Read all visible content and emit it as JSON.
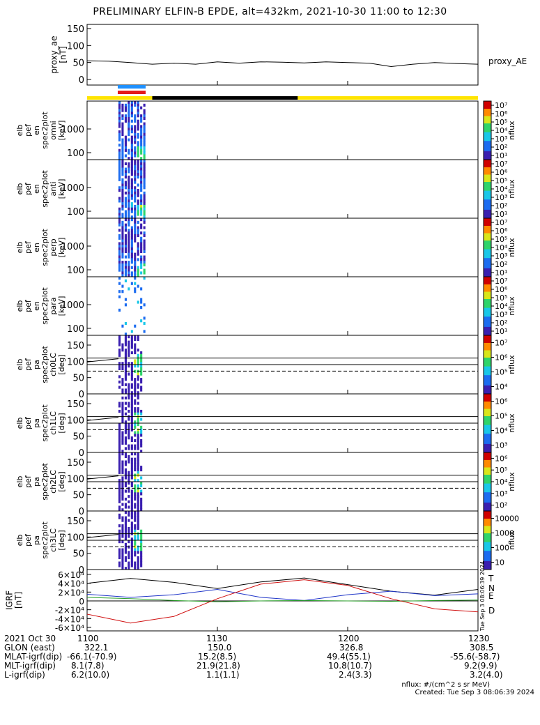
{
  "title": "PRELIMINARY ELFIN-B EPDE, alt=432km, 2021-10-30 11:00 to 12:30",
  "colors": {
    "ae_line": "#000000",
    "sci_blue": "#1e90ff",
    "sci_red": "#e41a1c",
    "bar_yellow": "#ffe400",
    "bar_black": "#000000",
    "bx": "#000000",
    "by": "#1f35c8",
    "bz": "#2aa12a",
    "bd": "#d01010"
  },
  "chart_data": [
    {
      "type": "line",
      "panel": "proxy_ae",
      "ylabel": "proxy_ae\n[nT]",
      "ylim": [
        0,
        150
      ],
      "yticks": [
        "0",
        "50",
        "100",
        "150"
      ],
      "legend": "proxy_AE",
      "x_minutes": [
        0,
        5,
        10,
        15,
        20,
        25,
        30,
        35,
        40,
        45,
        50,
        55,
        60,
        65,
        70,
        75,
        80,
        85,
        90
      ],
      "values": [
        55,
        54,
        50,
        45,
        48,
        45,
        52,
        48,
        52,
        51,
        49,
        52,
        50,
        48,
        38,
        45,
        50,
        47,
        45
      ]
    },
    {
      "type": "heatmap",
      "panel": "en-omni",
      "ylabel": "elb\npef\nen\nspec2plot\nomni\n[keV]",
      "yticks": [
        "100",
        "1000"
      ],
      "cbar_ticks": [
        "10¹",
        "10²",
        "10³",
        "10⁴",
        "10⁵",
        "10⁶",
        "10⁷"
      ],
      "cbar_label": "nflux"
    },
    {
      "type": "heatmap",
      "panel": "en-anti",
      "ylabel": "elb\npef\nen\nspec2plot\nanti\n[keV]",
      "yticks": [
        "100",
        "1000"
      ],
      "cbar_ticks": [
        "10¹",
        "10²",
        "10³",
        "10⁴",
        "10⁵",
        "10⁶",
        "10⁷"
      ],
      "cbar_label": "nflux"
    },
    {
      "type": "heatmap",
      "panel": "en-perp",
      "ylabel": "elb\npef\nen\nspec2plot\nperp\n[keV]",
      "yticks": [
        "100",
        "1000"
      ],
      "cbar_ticks": [
        "10¹",
        "10²",
        "10³",
        "10⁴",
        "10⁵",
        "10⁶",
        "10⁷"
      ],
      "cbar_label": "nflux"
    },
    {
      "type": "heatmap",
      "panel": "en-para",
      "ylabel": "elb\npef\nen\nspec2plot\npara\n[keV]",
      "yticks": [
        "100",
        "1000"
      ],
      "cbar_ticks": [
        "10¹",
        "10²",
        "10³",
        "10⁴",
        "10⁵",
        "10⁶",
        "10⁷"
      ],
      "cbar_label": "nflux"
    },
    {
      "type": "heatmap",
      "panel": "pa-ch0LC",
      "ylabel": "elb\npef\npa\nspec2plot\nch0LC\n[deg]",
      "ylim": [
        0,
        180
      ],
      "yticks": [
        "0",
        "50",
        "100",
        "150"
      ],
      "cbar_ticks": [
        "10⁴",
        "10⁵",
        "10⁶",
        "10⁷"
      ],
      "cbar_label": "nflux"
    },
    {
      "type": "heatmap",
      "panel": "pa-ch1LC",
      "ylabel": "elb\npef\npa\nspec2plot\nch1LC\n[deg]",
      "ylim": [
        0,
        180
      ],
      "yticks": [
        "0",
        "50",
        "100",
        "150"
      ],
      "cbar_ticks": [
        "10³",
        "10⁴",
        "10⁵",
        "10⁶"
      ],
      "cbar_label": "nflux"
    },
    {
      "type": "heatmap",
      "panel": "pa-ch2LC",
      "ylabel": "elb\npef\npa\nspec2plot\nch2LC\n[deg]",
      "ylim": [
        0,
        180
      ],
      "yticks": [
        "0",
        "50",
        "100",
        "150"
      ],
      "cbar_ticks": [
        "10²",
        "10³",
        "10⁴",
        "10⁵",
        "10⁶"
      ],
      "cbar_label": "nflux"
    },
    {
      "type": "heatmap",
      "panel": "pa-ch3LC",
      "ylabel": "elb\npef\npa\nspec2plot\nch3LC\n[deg]",
      "ylim": [
        0,
        180
      ],
      "yticks": [
        "0",
        "50",
        "100",
        "150"
      ],
      "cbar_ticks": [
        "10",
        "100",
        "1000",
        "10000"
      ],
      "cbar_label": "nflux"
    },
    {
      "type": "line",
      "panel": "igrf",
      "ylabel": "IGRF\n[nT]",
      "ylim": [
        -60000,
        60000
      ],
      "yticks": [
        "-6×10⁴",
        "-4×10⁴",
        "-2×10⁴",
        "0",
        "2×10⁴",
        "4×10⁴",
        "6×10⁴"
      ],
      "x_minutes": [
        0,
        10,
        20,
        30,
        40,
        50,
        60,
        70,
        80,
        90
      ],
      "series": [
        {
          "name": "T",
          "values": [
            40000,
            51000,
            42000,
            28000,
            43000,
            52000,
            37000,
            22000,
            13000,
            26000
          ]
        },
        {
          "name": "N",
          "values": [
            15000,
            8000,
            14000,
            26000,
            8000,
            1000,
            14000,
            22000,
            12000,
            16000
          ]
        },
        {
          "name": "E",
          "values": [
            8000,
            5000,
            1000,
            -2000,
            0,
            1000,
            0,
            -1000,
            1000,
            2000
          ]
        },
        {
          "name": "D",
          "values": [
            -30000,
            -50000,
            -35000,
            5000,
            38000,
            48000,
            35000,
            5000,
            -18000,
            -25000
          ]
        }
      ]
    }
  ],
  "xaxis": {
    "ticks": [
      {
        "minute": 0,
        "label": "1100"
      },
      {
        "minute": 30,
        "label": "1130"
      },
      {
        "minute": 60,
        "label": "1200"
      },
      {
        "minute": 90,
        "label": "1230"
      }
    ]
  },
  "footer": {
    "rows": [
      {
        "label": "2021 Oct 30",
        "values": [
          "1100",
          "1130",
          "1200",
          "1230"
        ]
      },
      {
        "label": "GLON (east)",
        "values": [
          "322.1",
          "150.0",
          "326.8",
          "308.5"
        ]
      },
      {
        "label": "MLAT-igrf(dip)",
        "values": [
          "-66.1(-70.9)",
          "15.2(8.5)",
          "49.4(55.1)",
          "-55.6(-58.7)"
        ]
      },
      {
        "label": "MLT-igrf(dip)",
        "values": [
          "8.1(7.8)",
          "21.9(21.8)",
          "10.8(10.7)",
          "9.2(9.9)"
        ]
      },
      {
        "label": "L-igrf(dip)",
        "values": [
          "6.2(10.0)",
          "1.1(1.1)",
          "2.4(3.3)",
          "3.2(4.0)"
        ]
      }
    ],
    "units_note": "nflux: #/(cm^2 s sr MeV)",
    "created": "Created: Tue Sep  3 08:06:39 2024",
    "side_stamp": "Tue Sep  3 08:06:39 2024"
  }
}
